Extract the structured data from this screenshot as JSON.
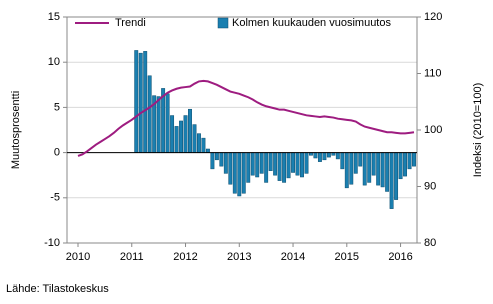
{
  "chart_data": {
    "type": "bar",
    "y_label": "Muutosprosentti",
    "y2_label": "Indeksi (2010=100)",
    "source": "Lähde: Tilastokeskus",
    "categories": [
      "2010",
      null,
      null,
      null,
      null,
      null,
      null,
      null,
      null,
      null,
      null,
      null,
      "2011",
      null,
      null,
      null,
      null,
      null,
      null,
      null,
      null,
      null,
      null,
      null,
      "2012",
      null,
      null,
      null,
      null,
      null,
      null,
      null,
      null,
      null,
      null,
      null,
      "2013",
      null,
      null,
      null,
      null,
      null,
      null,
      null,
      null,
      null,
      null,
      null,
      "2014",
      null,
      null,
      null,
      null,
      null,
      null,
      null,
      null,
      null,
      null,
      null,
      "2015",
      null,
      null,
      null,
      null,
      null,
      null,
      null,
      null,
      null,
      null,
      null,
      "2016",
      null,
      null,
      null
    ],
    "ylim": [
      -10,
      15
    ],
    "yticks": [
      -10,
      -5,
      0,
      5,
      10,
      15
    ],
    "y2lim": [
      80,
      120
    ],
    "y2ticks": [
      80,
      90,
      100,
      110,
      120
    ],
    "grid": true,
    "legend": "top",
    "series": [
      {
        "name": "Trendi",
        "type": "line",
        "axis": "y2",
        "color": "#9e1c80",
        "values": [
          95.4,
          95.7,
          96.2,
          96.8,
          97.4,
          97.9,
          98.4,
          98.9,
          99.5,
          100.2,
          100.8,
          101.3,
          101.8,
          102.4,
          103.0,
          103.5,
          104.0,
          104.6,
          105.3,
          106.0,
          106.6,
          107.0,
          107.3,
          107.5,
          107.6,
          107.7,
          108.2,
          108.6,
          108.7,
          108.6,
          108.3,
          108.0,
          107.6,
          107.2,
          106.8,
          106.6,
          106.4,
          106.1,
          105.8,
          105.4,
          104.9,
          104.5,
          104.2,
          104.0,
          103.8,
          103.6,
          103.6,
          103.4,
          103.2,
          103.0,
          102.8,
          102.6,
          102.5,
          102.4,
          102.3,
          102.4,
          102.3,
          102.2,
          102.0,
          101.9,
          101.8,
          101.7,
          101.5,
          101.0,
          100.6,
          100.4,
          100.2,
          100.0,
          99.8,
          99.6,
          99.6,
          99.5,
          99.4,
          99.4,
          99.5,
          99.6
        ]
      },
      {
        "name": "Kolmen kuukauden vuosimuutos",
        "type": "bar",
        "axis": "y",
        "color": "#1a7fb0",
        "values": [
          null,
          null,
          null,
          null,
          null,
          null,
          null,
          null,
          null,
          null,
          null,
          null,
          null,
          11.3,
          11.0,
          11.2,
          8.5,
          6.3,
          6.2,
          7.1,
          6.5,
          4.1,
          2.9,
          3.5,
          4.1,
          4.8,
          3.1,
          2.1,
          1.6,
          0.4,
          -1.8,
          -0.8,
          -1.5,
          -2.3,
          -3.5,
          -4.5,
          -4.8,
          -4.5,
          -3.3,
          -2.5,
          -2.7,
          -2.3,
          -3.3,
          -2.0,
          -2.5,
          -3.1,
          -3.3,
          -2.8,
          -2.2,
          -2.5,
          -2.7,
          -2.3,
          -0.3,
          -0.6,
          -1.0,
          -0.8,
          -0.5,
          -0.3,
          -0.7,
          -1.8,
          -3.9,
          -3.5,
          -2.3,
          -1.5,
          -3.6,
          -3.3,
          -2.5,
          -3.6,
          -3.8,
          -4.3,
          -6.2,
          -5.2,
          -2.9,
          -2.6,
          -1.8,
          -1.5
        ]
      }
    ]
  }
}
